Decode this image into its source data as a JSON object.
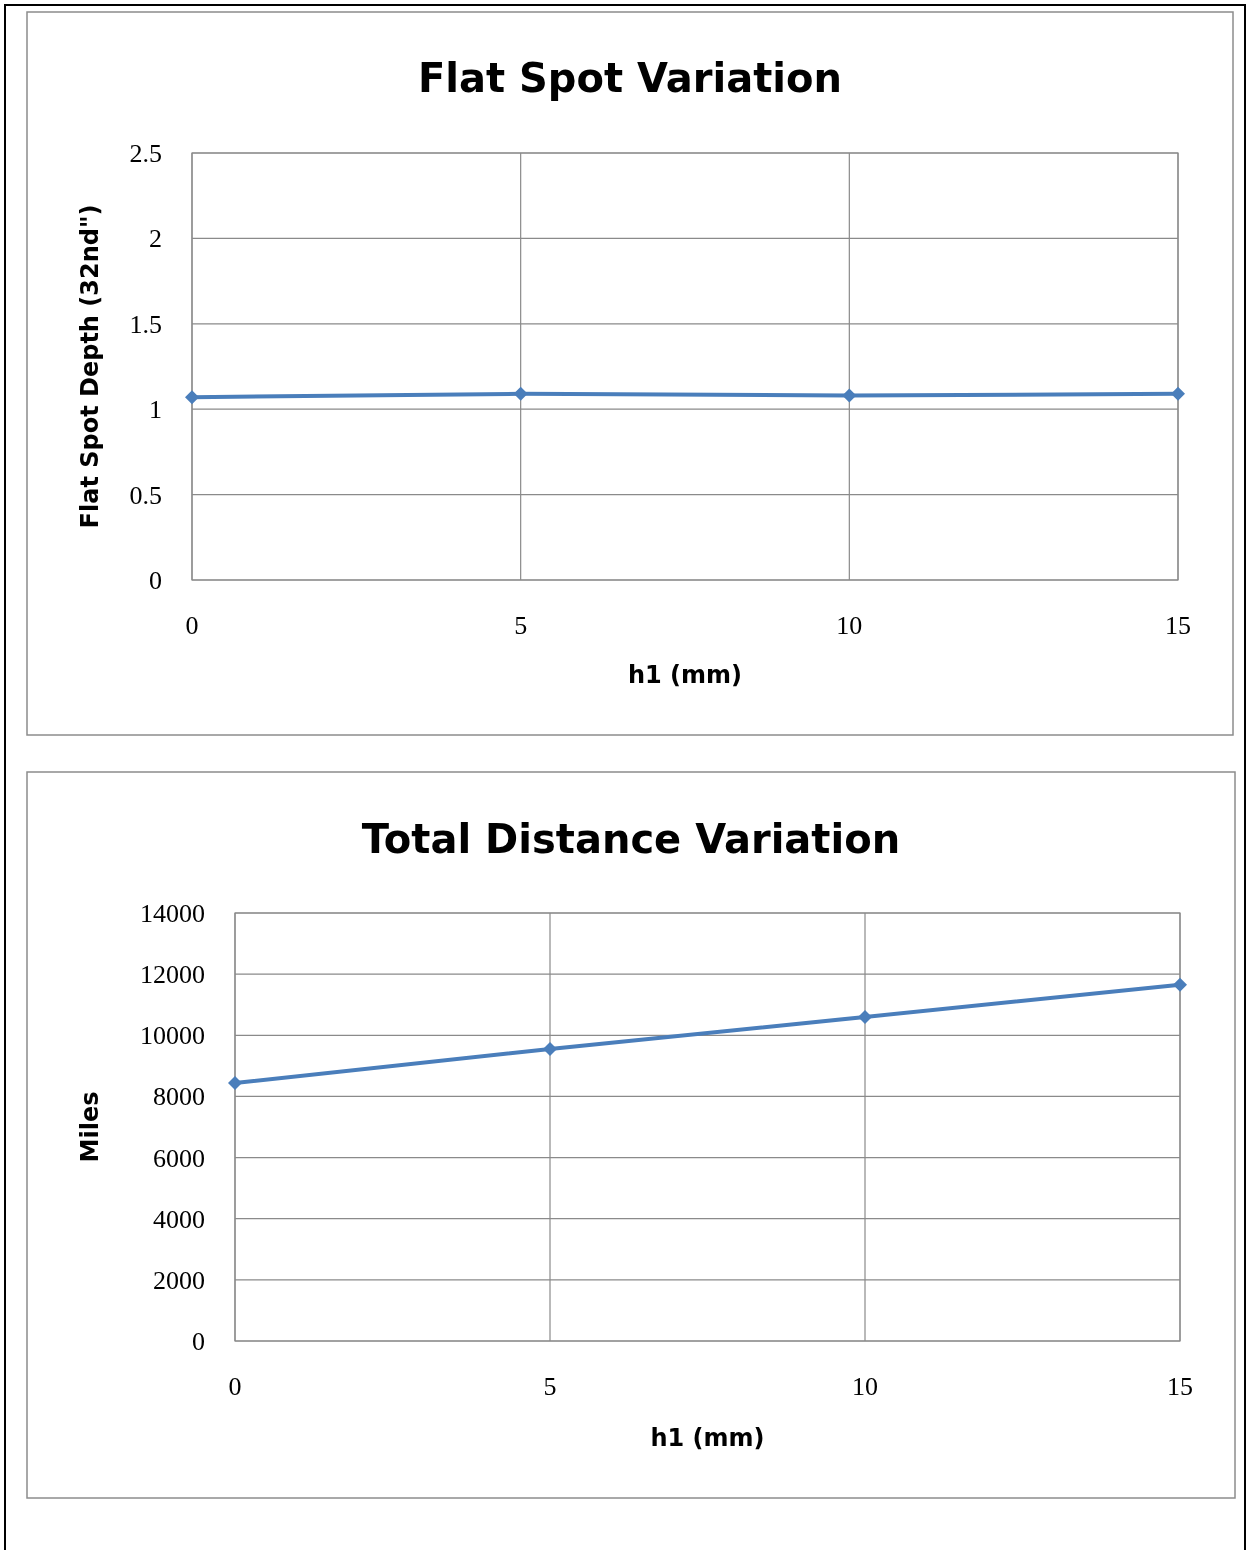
{
  "chart_data": [
    {
      "type": "line",
      "title": "Flat Spot Variation",
      "xlabel": "h1 (mm)",
      "ylabel": "Flat Spot Depth (32nd\")",
      "x": [
        0,
        5,
        10,
        15
      ],
      "series": [
        {
          "color": "#4a7ebb",
          "values": [
            1.07,
            1.09,
            1.08,
            1.09
          ]
        }
      ],
      "xlim": [
        0,
        15
      ],
      "xticks": [
        0,
        5,
        10,
        15
      ],
      "ylim": [
        0,
        2.5
      ],
      "yticks": [
        0,
        0.5,
        1,
        1.5,
        2,
        2.5
      ],
      "grid": true,
      "marker": "diamond"
    },
    {
      "type": "line",
      "title": "Total Distance Variation",
      "xlabel": "h1 (mm)",
      "ylabel": "Miles",
      "x": [
        0,
        5,
        10,
        15
      ],
      "series": [
        {
          "color": "#4a7ebb",
          "values": [
            8440,
            9550,
            10600,
            11650
          ]
        }
      ],
      "xlim": [
        0,
        15
      ],
      "xticks": [
        0,
        5,
        10,
        15
      ],
      "ylim": [
        0,
        14000
      ],
      "yticks": [
        0,
        2000,
        4000,
        6000,
        8000,
        10000,
        12000,
        14000
      ],
      "grid": true,
      "marker": "diamond"
    }
  ]
}
